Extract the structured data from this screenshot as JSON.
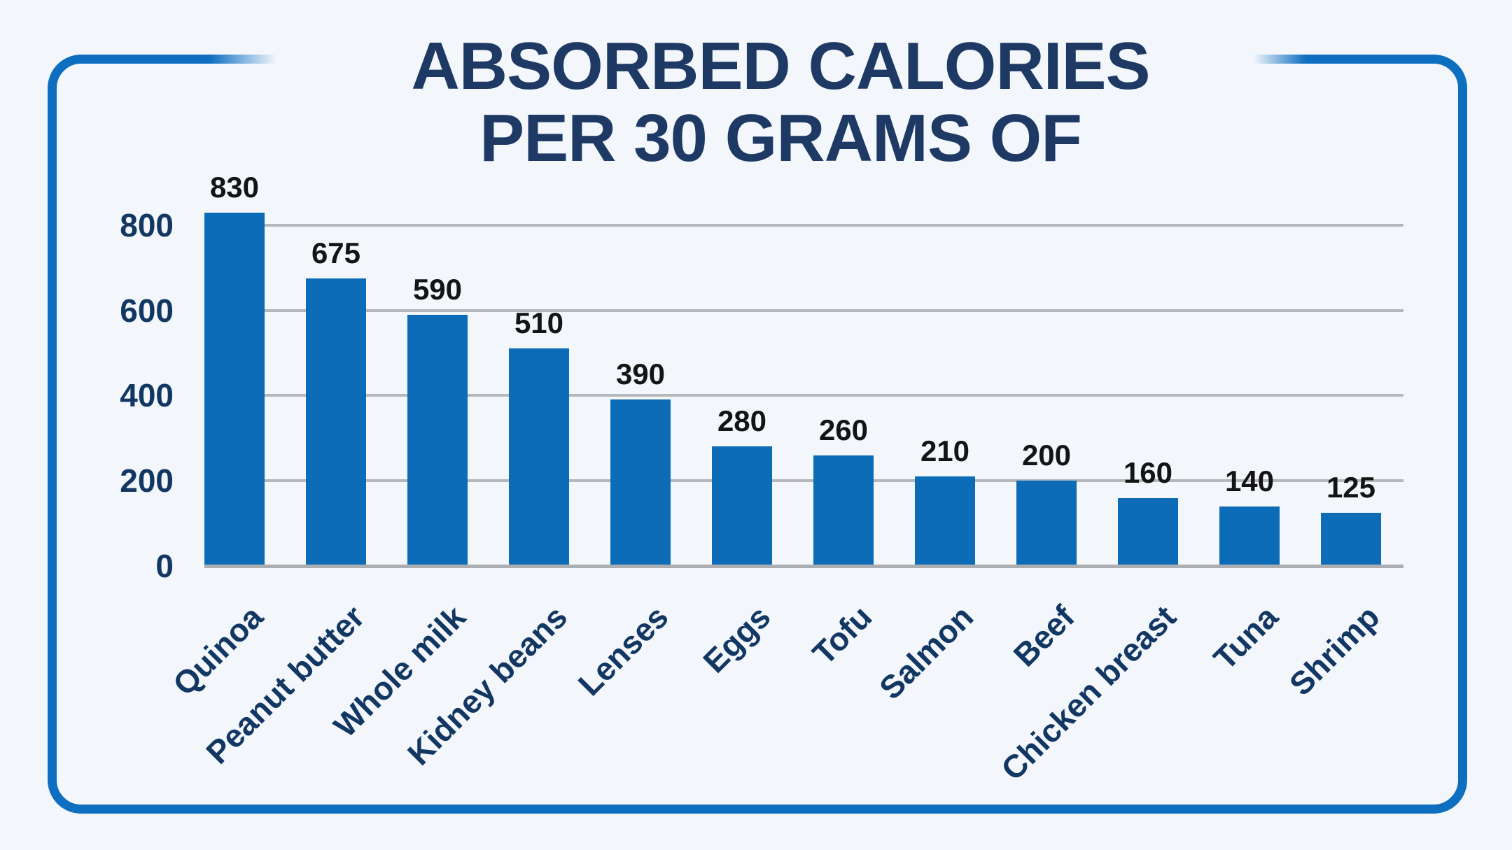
{
  "chart_data": {
    "type": "bar",
    "title_line1": "ABSORBED CALORIES",
    "title_line2": "PER 30 GRAMS OF",
    "categories": [
      "Quinoa",
      "Peanut butter",
      "Whole milk",
      "Kidney beans",
      "Lenses",
      "Eggs",
      "Tofu",
      "Salmon",
      "Beef",
      "Chicken breast",
      "Tuna",
      "Shrimp"
    ],
    "values": [
      830,
      675,
      590,
      510,
      390,
      280,
      260,
      210,
      200,
      160,
      140,
      125
    ],
    "value_labels": [
      "830",
      "675",
      "590",
      "510",
      "390",
      "280",
      "260",
      "210",
      "200",
      "160",
      "140",
      "125"
    ],
    "yticks": [
      0,
      200,
      400,
      600,
      800
    ],
    "ytick_labels": [
      "0",
      "200",
      "400",
      "600",
      "800"
    ],
    "ylim": [
      0,
      900
    ],
    "xlabel": "",
    "ylabel": "",
    "grid": "horizontal",
    "legend": "none",
    "colors": {
      "background": "#f3f7fb",
      "bar": "#0d6cb8",
      "frame_border": "#0e6fc1",
      "title": "#1e3a64",
      "axis_text": "#133763",
      "value_text": "#141414",
      "gridline": "#b5b7ba",
      "baseline": "#acaeb1"
    }
  }
}
